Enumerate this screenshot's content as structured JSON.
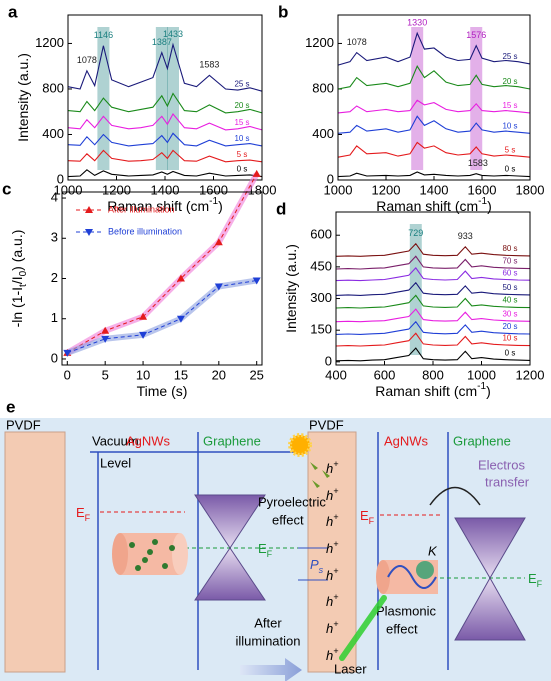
{
  "chart_data": [
    {
      "type": "line",
      "panel": "a",
      "xlabel": [
        {
          "text": "Raman shift (cm"
        },
        {
          "text": "-1",
          "style": "sup"
        },
        {
          "text": ")"
        }
      ],
      "ylabel": [
        {
          "text": "Intensity (a.u.)"
        }
      ],
      "xlim": [
        1000,
        1800
      ],
      "xticks": [
        1000,
        1200,
        1400,
        1600,
        1800
      ],
      "ylim": [
        0,
        1450
      ],
      "yticks": [
        0,
        400,
        800,
        1200
      ],
      "x": [
        1000,
        1050,
        1078,
        1110,
        1146,
        1180,
        1250,
        1300,
        1350,
        1387,
        1410,
        1433,
        1480,
        1530,
        1583,
        1650,
        1700,
        1750,
        1800
      ],
      "series": [
        {
          "name": "0 s",
          "color": "#000000",
          "values": [
            30,
            35,
            90,
            40,
            80,
            50,
            35,
            40,
            45,
            70,
            50,
            75,
            40,
            35,
            60,
            35,
            40,
            45,
            30
          ]
        },
        {
          "name": "5 s",
          "color": "#e41a1c",
          "values": [
            170,
            165,
            230,
            170,
            260,
            190,
            165,
            170,
            180,
            240,
            190,
            260,
            170,
            165,
            210,
            160,
            170,
            175,
            160
          ]
        },
        {
          "name": "10 s",
          "color": "#1f3fd6",
          "values": [
            310,
            305,
            380,
            310,
            400,
            330,
            300,
            310,
            320,
            390,
            330,
            410,
            310,
            300,
            350,
            300,
            310,
            320,
            300
          ]
        },
        {
          "name": "15 s",
          "color": "#e81ee0",
          "values": [
            460,
            450,
            530,
            460,
            560,
            480,
            450,
            460,
            480,
            560,
            490,
            580,
            460,
            450,
            500,
            440,
            450,
            470,
            440
          ]
        },
        {
          "name": "20 s",
          "color": "#1a8a1a",
          "values": [
            610,
            600,
            690,
            610,
            720,
            640,
            600,
            620,
            640,
            740,
            650,
            760,
            610,
            600,
            660,
            590,
            600,
            620,
            590
          ]
        },
        {
          "name": "25 s",
          "color": "#1a1a7a",
          "values": [
            820,
            800,
            960,
            830,
            1180,
            880,
            820,
            860,
            900,
            1120,
            980,
            1190,
            850,
            820,
            920,
            800,
            790,
            810,
            780
          ]
        }
      ],
      "peaks": [
        {
          "value": 1078,
          "color": "#222222",
          "band": false,
          "series": 5
        },
        {
          "value": 1146,
          "color": "#1a7f7f",
          "band": true,
          "series": 5
        },
        {
          "value": 1387,
          "color": "#1a7f7f",
          "band": true,
          "series": 5
        },
        {
          "value": 1433,
          "color": "#1a7f7f",
          "band": true,
          "series": 5
        },
        {
          "value": 1583,
          "color": "#222222",
          "band": false,
          "series": 5
        }
      ]
    },
    {
      "type": "line",
      "panel": "b",
      "xlabel": [
        {
          "text": "Raman shift (cm"
        },
        {
          "text": "-1",
          "style": "sup"
        },
        {
          "text": ")"
        }
      ],
      "xlim": [
        1000,
        1800
      ],
      "xticks": [
        1000,
        1200,
        1400,
        1600,
        1800
      ],
      "ylim": [
        0,
        1450
      ],
      "yticks": [
        0,
        400,
        800,
        1200
      ],
      "x": [
        1000,
        1050,
        1078,
        1120,
        1200,
        1250,
        1300,
        1330,
        1360,
        1400,
        1450,
        1500,
        1550,
        1576,
        1600,
        1650,
        1700,
        1750,
        1800
      ],
      "series": [
        {
          "name": "0 s",
          "color": "#000000",
          "values": [
            30,
            35,
            60,
            35,
            40,
            35,
            40,
            70,
            45,
            50,
            40,
            35,
            40,
            55,
            40,
            35,
            40,
            35,
            30
          ]
        },
        {
          "name": "5 s",
          "color": "#e41a1c",
          "values": [
            200,
            220,
            300,
            230,
            240,
            210,
            230,
            330,
            280,
            300,
            240,
            220,
            230,
            290,
            230,
            210,
            220,
            210,
            200
          ]
        },
        {
          "name": "10 s",
          "color": "#1f3fd6",
          "values": [
            410,
            420,
            480,
            430,
            450,
            420,
            440,
            560,
            480,
            520,
            450,
            420,
            430,
            500,
            440,
            420,
            430,
            420,
            410
          ]
        },
        {
          "name": "15 s",
          "color": "#e81ee0",
          "values": [
            590,
            600,
            650,
            600,
            620,
            600,
            610,
            700,
            660,
            680,
            620,
            600,
            610,
            670,
            610,
            600,
            610,
            600,
            590
          ]
        },
        {
          "name": "20 s",
          "color": "#1a8a1a",
          "values": [
            800,
            820,
            900,
            830,
            850,
            820,
            850,
            1000,
            900,
            960,
            860,
            830,
            840,
            920,
            840,
            820,
            830,
            820,
            800
          ]
        },
        {
          "name": "25 s",
          "color": "#1a1a7a",
          "values": [
            1010,
            1040,
            1120,
            1050,
            1080,
            1040,
            1080,
            1290,
            1150,
            1160,
            1080,
            1050,
            1060,
            1180,
            1070,
            1040,
            1050,
            1040,
            1020
          ]
        }
      ],
      "peaks": [
        {
          "value": 1078,
          "color": "#222222",
          "band": false,
          "series": 5
        },
        {
          "value": 1330,
          "color": "#b01cc0",
          "band": true,
          "series": 5
        },
        {
          "value": 1576,
          "color": "#b01cc0",
          "band": true,
          "series": 5
        },
        {
          "value": 1583,
          "color": "#222222",
          "band": false,
          "series": 0
        }
      ]
    },
    {
      "type": "scatter",
      "panel": "c",
      "xlabel": [
        {
          "text": "Time (s)"
        }
      ],
      "ylabel": [
        {
          "text": "-ln (1-I"
        },
        {
          "text": "t",
          "style": "sub"
        },
        {
          "text": "/I"
        },
        {
          "text": "0",
          "style": "sub"
        },
        {
          "text": ") (a.u.)"
        }
      ],
      "xlim": [
        -0.7,
        25.7
      ],
      "xticks": [
        0,
        5,
        10,
        15,
        20,
        25
      ],
      "ylim": [
        -0.15,
        4.15
      ],
      "yticks": [
        0,
        1,
        2,
        3,
        4
      ],
      "x": [
        0,
        5,
        10,
        15,
        20,
        25
      ],
      "series": [
        {
          "name": "After illumination",
          "color": "#e41a1c",
          "band_color": "#f07ad8",
          "marker": "up",
          "values": [
            0.15,
            0.7,
            1.05,
            2.0,
            2.9,
            4.6
          ]
        },
        {
          "name": "Before illumination",
          "color": "#1f3fd6",
          "band_color": "#8a9ee0",
          "marker": "down",
          "values": [
            0.15,
            0.5,
            0.6,
            1.0,
            1.8,
            1.95
          ]
        }
      ]
    },
    {
      "type": "line",
      "panel": "d",
      "xlabel": [
        {
          "text": "Raman shift (cm"
        },
        {
          "text": "-1",
          "style": "sup"
        },
        {
          "text": ")"
        }
      ],
      "ylabel": [
        {
          "text": "Intensity (a.u.)"
        }
      ],
      "xlim": [
        400,
        1200
      ],
      "xticks": [
        400,
        600,
        800,
        1000,
        1200
      ],
      "ylim": [
        -15,
        710
      ],
      "yticks": [
        0,
        150,
        300,
        450,
        600
      ],
      "x": [
        400,
        450,
        500,
        550,
        600,
        650,
        700,
        729,
        760,
        800,
        850,
        900,
        933,
        960,
        1000,
        1050,
        1100,
        1150,
        1200
      ],
      "series": [
        {
          "name": "0 s",
          "color": "#000000",
          "values": [
            5,
            7,
            5,
            8,
            10,
            20,
            30,
            65,
            15,
            10,
            8,
            10,
            50,
            15,
            20,
            13,
            10,
            8,
            7
          ]
        },
        {
          "name": "10 s",
          "color": "#e41a1c",
          "values": [
            75,
            77,
            75,
            78,
            80,
            90,
            100,
            135,
            85,
            80,
            78,
            80,
            120,
            85,
            90,
            83,
            80,
            78,
            77
          ]
        },
        {
          "name": "20 s",
          "color": "#1f3fd6",
          "values": [
            130,
            132,
            130,
            133,
            135,
            145,
            155,
            190,
            140,
            135,
            133,
            135,
            175,
            140,
            145,
            138,
            135,
            133,
            132
          ]
        },
        {
          "name": "30 s",
          "color": "#e81ee0",
          "values": [
            190,
            192,
            190,
            193,
            195,
            205,
            215,
            250,
            200,
            195,
            193,
            195,
            235,
            200,
            205,
            198,
            195,
            193,
            192
          ]
        },
        {
          "name": "40 s",
          "color": "#1a8a1a",
          "values": [
            255,
            257,
            255,
            258,
            260,
            270,
            280,
            315,
            265,
            260,
            258,
            260,
            300,
            265,
            270,
            263,
            260,
            258,
            257
          ]
        },
        {
          "name": "50 s",
          "color": "#1a1a7a",
          "values": [
            315,
            317,
            315,
            318,
            320,
            330,
            340,
            375,
            325,
            320,
            318,
            320,
            360,
            325,
            330,
            323,
            320,
            318,
            317
          ]
        },
        {
          "name": "60 s",
          "color": "#8a2be2",
          "values": [
            385,
            387,
            385,
            388,
            390,
            400,
            410,
            445,
            395,
            390,
            388,
            390,
            430,
            395,
            400,
            393,
            390,
            388,
            387
          ]
        },
        {
          "name": "70 s",
          "color": "#7a1f6a",
          "values": [
            440,
            442,
            440,
            443,
            445,
            455,
            465,
            500,
            450,
            445,
            443,
            445,
            485,
            450,
            455,
            448,
            445,
            443,
            442
          ]
        },
        {
          "name": "80 s",
          "color": "#7a1010",
          "values": [
            500,
            502,
            500,
            503,
            505,
            515,
            525,
            560,
            510,
            505,
            503,
            505,
            545,
            510,
            515,
            508,
            505,
            503,
            502
          ]
        }
      ],
      "peaks": [
        {
          "value": 729,
          "color": "#1a7f7f",
          "band": true,
          "series": 8
        },
        {
          "value": 933,
          "color": "#222222",
          "band": false,
          "series": 8
        }
      ]
    }
  ],
  "diagram": {
    "panel": "e",
    "pvdf": "PVDF",
    "vacuum": [
      "Vacuum",
      "Level"
    ],
    "agnws": "AgNWs",
    "graphene": "Graphene",
    "fermi": {
      "main": "E",
      "sub": "F"
    },
    "hole": {
      "main": "h",
      "sup": "+"
    },
    "ps": {
      "main": "P",
      "sub": "s"
    },
    "pyro": [
      "Pyroelectric",
      "effect"
    ],
    "after": [
      "After",
      "illumination"
    ],
    "electron": [
      "Electros",
      "transfer"
    ],
    "k": "K",
    "plasmonic": [
      "Plasmonic",
      "effect"
    ],
    "laser": "Laser"
  }
}
